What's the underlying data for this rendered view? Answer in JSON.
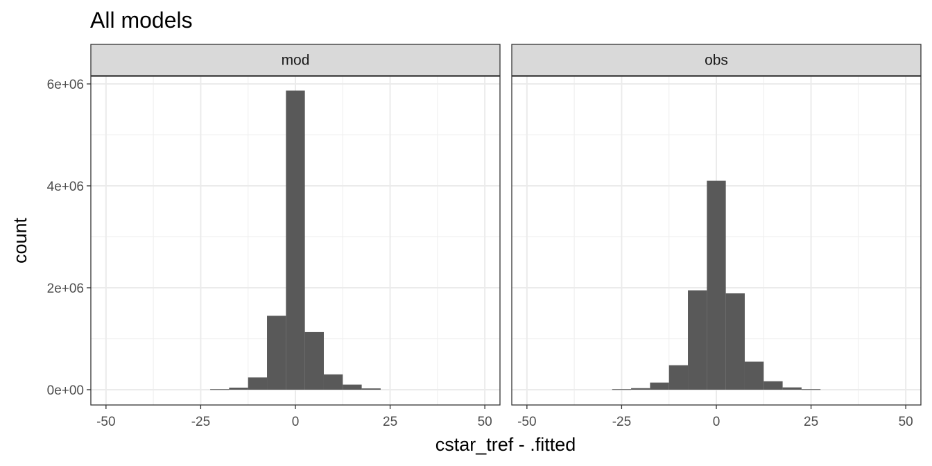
{
  "chart_data": {
    "type": "histogram",
    "title": "All models",
    "xlabel": "cstar_tref - .fitted",
    "ylabel": "count",
    "xlim": [
      -54,
      54
    ],
    "ylim": [
      -300000,
      6150000
    ],
    "x_ticks": [
      -50,
      -25,
      0,
      25,
      50
    ],
    "x_tick_labels": [
      "-50",
      "-25",
      "0",
      "25",
      "50"
    ],
    "y_ticks": [
      0,
      2000000,
      4000000,
      6000000
    ],
    "y_tick_labels": [
      "0e+00",
      "2e+06",
      "4e+06",
      "6e+06"
    ],
    "bin_width": 5,
    "bin_centers": [
      -25,
      -20,
      -15,
      -10,
      -5,
      0,
      5,
      10,
      15,
      20,
      25
    ],
    "grid": true,
    "legend": "none",
    "bar_color": "#595959",
    "panels": [
      {
        "strip": "mod",
        "values": [
          0,
          10000,
          40000,
          240000,
          1450000,
          5870000,
          1130000,
          300000,
          100000,
          25000,
          0
        ]
      },
      {
        "strip": "obs",
        "values": [
          10000,
          30000,
          140000,
          480000,
          1950000,
          4100000,
          1890000,
          550000,
          165000,
          45000,
          10000
        ]
      }
    ]
  }
}
